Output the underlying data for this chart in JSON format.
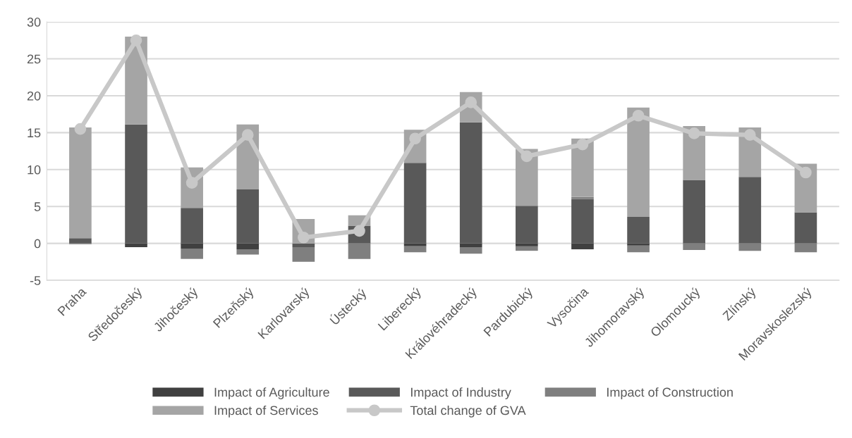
{
  "chart_data": {
    "type": "bar",
    "stacked": true,
    "categories": [
      "Praha",
      "Středočeský",
      "Jihočeský",
      "Plzeňský",
      "Karlovarský",
      "Ústecký",
      "Liberecký",
      "Královéhradecký",
      "Pardubický",
      "Vysočina",
      "Jihomoravský",
      "Olomoucký",
      "Zlínský",
      "Moravskoslezský"
    ],
    "series": [
      {
        "name": "Impact of Agriculture",
        "color": "#404040",
        "values": [
          0,
          -0.5,
          -0.7,
          -0.8,
          0,
          0,
          -0.4,
          -0.5,
          -0.4,
          -0.8,
          -0.3,
          0,
          0,
          0
        ]
      },
      {
        "name": "Impact of Industry",
        "color": "#595959",
        "values": [
          0.7,
          16.1,
          4.8,
          7.3,
          -0.5,
          2.4,
          10.9,
          16.4,
          5.1,
          6.0,
          3.6,
          8.6,
          9.0,
          4.2
        ]
      },
      {
        "name": "Impact of Construction",
        "color": "#7f7f7f",
        "values": [
          -0.1,
          0,
          -1.4,
          -0.7,
          -2.0,
          -2.1,
          -0.8,
          -0.9,
          -0.6,
          0.3,
          -0.9,
          -0.9,
          -1.0,
          -1.2
        ]
      },
      {
        "name": "Impact of Services",
        "color": "#a5a5a5",
        "values": [
          15.0,
          11.9,
          5.5,
          8.8,
          3.3,
          1.4,
          4.5,
          4.1,
          7.7,
          7.9,
          14.8,
          7.3,
          6.7,
          6.6
        ]
      },
      {
        "name": "Total change of GVA",
        "type": "line",
        "color": "#c8c8c8",
        "marker": "circle",
        "values": [
          15.5,
          27.5,
          8.2,
          14.7,
          0.8,
          1.7,
          14.2,
          19.1,
          11.8,
          13.4,
          17.3,
          14.9,
          14.7,
          9.6
        ]
      }
    ],
    "ylim": [
      -5,
      30
    ],
    "yticks": [
      -5,
      0,
      5,
      10,
      15,
      20,
      25,
      30
    ],
    "grid": "y",
    "legend": "bottom"
  }
}
